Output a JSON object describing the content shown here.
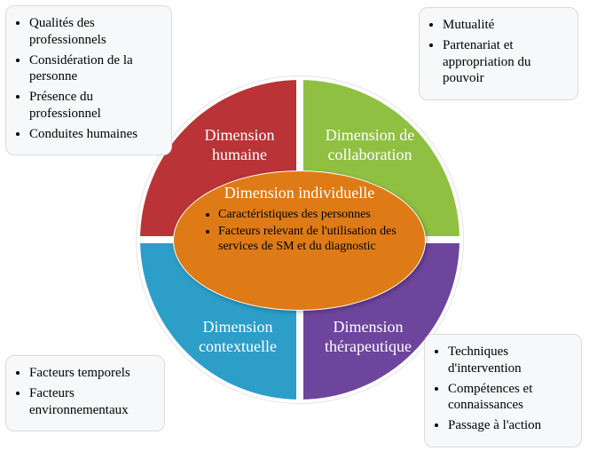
{
  "colors": {
    "quadrant_tl": "#b93337",
    "quadrant_tr": "#8fc042",
    "quadrant_bl": "#2c9ec8",
    "quadrant_br": "#6d459d",
    "center": "#de7b16",
    "box_bg": "#f6f8fa",
    "box_border": "#dadada"
  },
  "center": {
    "title": "Dimension individuelle",
    "items": [
      "Caractéristiques des personnes",
      "Facteurs relevant de l'utilisation des services de SM et du diagnostic"
    ]
  },
  "quadrants": {
    "tl": {
      "label": "Dimension humaine"
    },
    "tr": {
      "label": "Dimension de collaboration"
    },
    "bl": {
      "label": "Dimension contextuelle"
    },
    "br": {
      "label": "Dimension thérapeutique"
    }
  },
  "boxes": {
    "tl": {
      "items": [
        "Qualités des professionnels",
        "Considération de la personne",
        "Présence du professionnel",
        "Conduites humaines"
      ]
    },
    "tr": {
      "items": [
        "Mutualité",
        "Partenariat et appropriation du pouvoir"
      ]
    },
    "bl": {
      "items": [
        "Facteurs temporels",
        "Facteurs environnementaux"
      ]
    },
    "br": {
      "items": [
        "Techniques d'intervention",
        "Compétences et connaissances",
        "Passage à l'action"
      ]
    }
  }
}
